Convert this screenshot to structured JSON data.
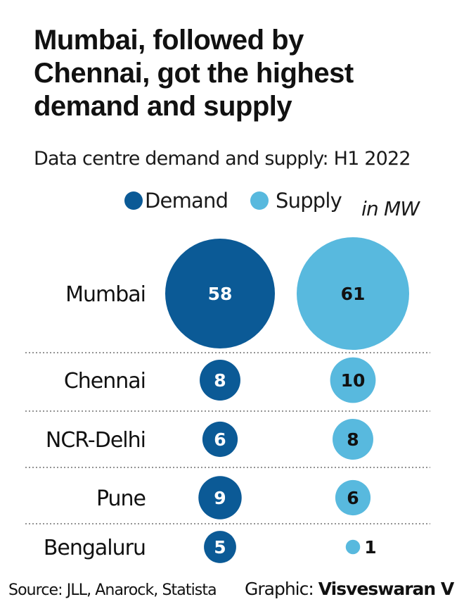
{
  "header": {
    "title_lines": [
      "Mumbai, followed by",
      "Chennai, got the highest",
      "demand and supply"
    ],
    "subtitle": "Data centre demand and supply: H1 2022"
  },
  "legend": {
    "demand": "Demand",
    "supply": "Supply",
    "unit": "in MW"
  },
  "colors": {
    "demand": "#0b5a96",
    "supply": "#58b9de",
    "divider": "#555555"
  },
  "chart_data": {
    "type": "scatter",
    "encoding": "bubble",
    "title": "Mumbai, followed by Chennai, got the highest demand and supply",
    "subtitle": "Data centre demand and supply: H1 2022",
    "unit": "in MW",
    "categories": [
      "Mumbai",
      "Chennai",
      "NCR-Delhi",
      "Pune",
      "Bengaluru"
    ],
    "series": [
      {
        "name": "Demand",
        "values": [
          58,
          8,
          6,
          9,
          5
        ]
      },
      {
        "name": "Supply",
        "values": [
          61,
          10,
          8,
          6,
          1
        ]
      }
    ],
    "legend_position": "top"
  },
  "footer": {
    "source": "Source: JLL, Anarock, Statista",
    "credit_prefix": "Graphic: ",
    "credit_name": "Visveswaran V"
  }
}
